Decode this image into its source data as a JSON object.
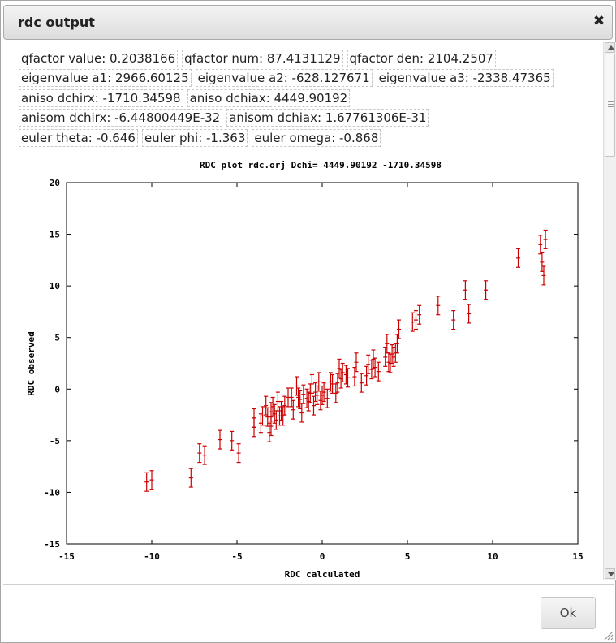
{
  "dialog": {
    "title": "rdc output",
    "close_glyph": "✖",
    "ok_label": "Ok"
  },
  "info_rows": [
    [
      "qfactor value: 0.2038166",
      "qfactor num: 87.4131129",
      "qfactor den: 2104.2507"
    ],
    [
      "eigenvalue a1: 2966.60125",
      "eigenvalue a2: -628.127671",
      "eigenvalue a3: -2338.47365"
    ],
    [
      "aniso dchirx: -1710.34598",
      "aniso dchiax: 4449.90192"
    ],
    [
      "anisom dchirx: -6.44800449E-32",
      "anisom dchiax: 1.67761306E-31"
    ],
    [
      "euler theta: -0.646",
      "euler phi: -1.363",
      "euler omega: -0.868"
    ]
  ],
  "icons": {
    "close": "close-icon",
    "scroll_up": "scroll-up-arrow-icon",
    "scroll_down": "scroll-down-arrow-icon",
    "resize": "resize-grip-icon"
  },
  "chart_data": {
    "type": "scatter",
    "title": "RDC plot rdc.orj Dchi= 4449.90192 -1710.34598",
    "xlabel": "RDC calculated",
    "ylabel": "RDC observed",
    "xlim": [
      -15,
      15
    ],
    "ylim": [
      -15,
      20
    ],
    "xticks": [
      -15,
      -10,
      -5,
      0,
      5,
      10,
      15
    ],
    "yticks": [
      -15,
      -10,
      -5,
      0,
      5,
      10,
      15,
      20
    ],
    "grid": false,
    "point_color": "#cc0000",
    "error_bar_halfwidth": 0.9,
    "points": [
      [
        -10.3,
        -9.0
      ],
      [
        -10.0,
        -8.8
      ],
      [
        -7.7,
        -8.6
      ],
      [
        -7.2,
        -6.2
      ],
      [
        -6.9,
        -6.4
      ],
      [
        -6.0,
        -4.9
      ],
      [
        -5.3,
        -5.0
      ],
      [
        -4.9,
        -6.2
      ],
      [
        -4.0,
        -3.7
      ],
      [
        -4.0,
        -2.8
      ],
      [
        -3.6,
        -3.3
      ],
      [
        -3.5,
        -2.6
      ],
      [
        -3.3,
        -1.6
      ],
      [
        -3.2,
        -2.7
      ],
      [
        -3.1,
        -4.2
      ],
      [
        -3.0,
        -2.2
      ],
      [
        -3.0,
        -3.6
      ],
      [
        -2.9,
        -1.7
      ],
      [
        -2.8,
        -2.4
      ],
      [
        -2.7,
        -3.0
      ],
      [
        -2.6,
        -1.2
      ],
      [
        -2.5,
        -2.6
      ],
      [
        -2.4,
        -2.1
      ],
      [
        -2.3,
        -2.6
      ],
      [
        -2.2,
        -1.6
      ],
      [
        -2.0,
        -0.8
      ],
      [
        -1.8,
        -0.8
      ],
      [
        -1.7,
        -2.0
      ],
      [
        -1.5,
        0.3
      ],
      [
        -1.4,
        -0.8
      ],
      [
        -1.3,
        -1.0
      ],
      [
        -1.2,
        -2.3
      ],
      [
        -1.1,
        -0.5
      ],
      [
        -0.9,
        -0.9
      ],
      [
        -0.8,
        -1.2
      ],
      [
        -0.7,
        -0.4
      ],
      [
        -0.6,
        0.5
      ],
      [
        -0.5,
        -1.6
      ],
      [
        -0.4,
        -0.3
      ],
      [
        -0.3,
        -0.6
      ],
      [
        -0.2,
        0.7
      ],
      [
        -0.1,
        -1.1
      ],
      [
        0.0,
        -0.6
      ],
      [
        0.1,
        -0.3
      ],
      [
        0.3,
        -0.9
      ],
      [
        0.5,
        0.7
      ],
      [
        0.6,
        0.5
      ],
      [
        0.8,
        -0.4
      ],
      [
        0.9,
        0.6
      ],
      [
        1.0,
        2.0
      ],
      [
        1.1,
        1.0
      ],
      [
        1.2,
        1.6
      ],
      [
        1.4,
        1.4
      ],
      [
        1.5,
        1.1
      ],
      [
        1.9,
        1.2
      ],
      [
        2.0,
        2.6
      ],
      [
        2.3,
        0.6
      ],
      [
        2.6,
        1.3
      ],
      [
        2.7,
        2.4
      ],
      [
        2.9,
        1.9
      ],
      [
        3.0,
        2.9
      ],
      [
        3.1,
        2.1
      ],
      [
        3.3,
        1.7
      ],
      [
        3.7,
        3.1
      ],
      [
        3.8,
        4.4
      ],
      [
        3.9,
        2.6
      ],
      [
        4.0,
        2.5
      ],
      [
        4.1,
        3.4
      ],
      [
        4.2,
        3.1
      ],
      [
        4.3,
        3.5
      ],
      [
        4.4,
        4.4
      ],
      [
        4.5,
        5.8
      ],
      [
        5.3,
        6.5
      ],
      [
        5.5,
        6.7
      ],
      [
        5.7,
        7.2
      ],
      [
        6.8,
        8.1
      ],
      [
        7.7,
        6.7
      ],
      [
        8.4,
        9.6
      ],
      [
        8.6,
        7.3
      ],
      [
        9.6,
        9.6
      ],
      [
        11.5,
        12.7
      ],
      [
        12.8,
        14.0
      ],
      [
        12.9,
        12.3
      ],
      [
        13.1,
        14.5
      ],
      [
        13.0,
        11.0
      ]
    ]
  }
}
